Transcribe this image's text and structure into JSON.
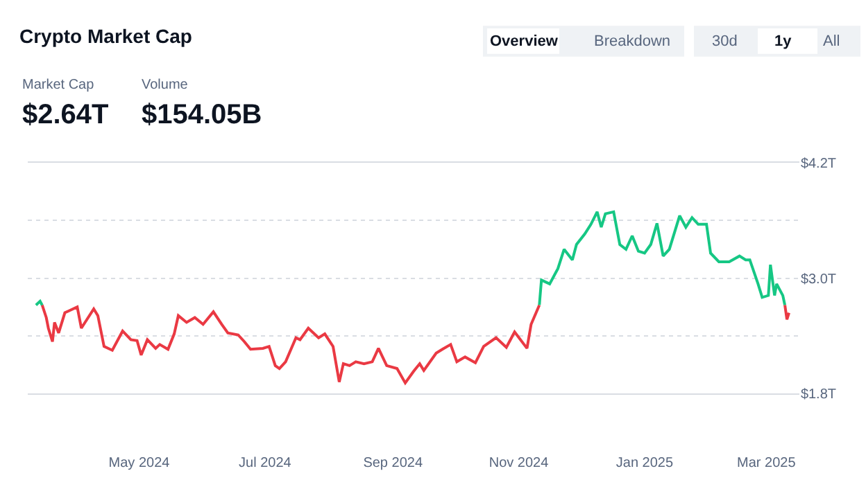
{
  "chart_data": {
    "type": "line",
    "title": "Crypto Market Cap",
    "annotations": [
      "Overview",
      "Breakdown",
      "30d",
      "1y",
      "All",
      "Market Cap",
      "$2.64T",
      "Volume",
      "$154.05B"
    ],
    "series": [
      {
        "color": "#ea3943",
        "x": [
          "2024-03-15",
          "2024-03-17",
          "2024-03-18",
          "2024-03-20",
          "2024-03-21",
          "2024-03-23",
          "2024-03-26",
          "2024-03-28",
          "2024-04-01",
          "2024-04-03",
          "2024-04-09",
          "2024-04-11",
          "2024-04-14",
          "2024-04-18",
          "2024-04-23",
          "2024-04-27",
          "2024-04-30",
          "2024-05-02",
          "2024-05-05",
          "2024-05-09",
          "2024-05-11",
          "2024-05-15",
          "2024-05-18",
          "2024-05-20",
          "2024-05-24",
          "2024-05-28",
          "2024-06-01",
          "2024-06-06",
          "2024-06-10",
          "2024-06-13",
          "2024-06-18",
          "2024-06-21",
          "2024-06-24",
          "2024-06-30",
          "2024-07-03",
          "2024-07-06",
          "2024-07-08",
          "2024-07-11",
          "2024-07-16",
          "2024-07-18",
          "2024-07-22",
          "2024-07-27",
          "2024-07-30",
          "2024-08-03",
          "2024-08-06",
          "2024-08-08",
          "2024-08-11",
          "2024-08-14",
          "2024-08-18",
          "2024-08-22",
          "2024-08-25",
          "2024-08-29",
          "2024-09-03",
          "2024-09-07",
          "2024-09-11",
          "2024-09-14",
          "2024-09-16",
          "2024-09-22",
          "2024-09-25",
          "2024-09-29",
          "2024-10-02",
          "2024-10-06",
          "2024-10-11",
          "2024-10-15",
          "2024-10-21",
          "2024-10-26",
          "2024-10-30",
          "2024-11-05",
          "2024-11-07",
          "2024-11-11"
        ],
        "values": [
          2.72,
          2.59,
          2.48,
          2.34,
          2.54,
          2.43,
          2.64,
          2.66,
          2.7,
          2.48,
          2.68,
          2.61,
          2.29,
          2.25,
          2.45,
          2.36,
          2.35,
          2.2,
          2.36,
          2.27,
          2.31,
          2.26,
          2.42,
          2.61,
          2.54,
          2.59,
          2.52,
          2.65,
          2.52,
          2.43,
          2.41,
          2.34,
          2.26,
          2.27,
          2.29,
          2.09,
          2.06,
          2.13,
          2.38,
          2.36,
          2.48,
          2.38,
          2.42,
          2.29,
          1.92,
          2.11,
          2.09,
          2.13,
          2.11,
          2.13,
          2.27,
          2.09,
          2.06,
          1.91,
          2.03,
          2.11,
          2.04,
          2.22,
          2.26,
          2.31,
          2.13,
          2.18,
          2.12,
          2.29,
          2.38,
          2.28,
          2.44,
          2.27,
          2.52,
          2.72
        ]
      },
      {
        "color": "#16c784",
        "x": [
          "2024-11-11",
          "2024-11-12",
          "2024-11-16",
          "2024-11-20",
          "2024-11-23",
          "2024-11-27",
          "2024-11-29",
          "2024-12-03",
          "2024-12-06",
          "2024-12-09",
          "2024-12-11",
          "2024-12-13",
          "2024-12-17",
          "2024-12-20",
          "2024-12-23",
          "2024-12-26",
          "2024-12-29",
          "2025-01-01",
          "2025-01-04",
          "2025-01-07",
          "2025-01-10",
          "2025-01-13",
          "2025-01-18",
          "2025-01-21",
          "2025-01-24",
          "2025-01-27",
          "2025-01-31",
          "2025-02-02",
          "2025-02-06",
          "2025-02-11",
          "2025-02-16",
          "2025-02-19",
          "2025-02-21",
          "2025-02-25",
          "2025-02-27",
          "2025-03-02",
          "2025-03-03",
          "2025-03-05",
          "2025-03-06",
          "2025-03-09",
          "2025-03-10"
        ],
        "values": [
          2.72,
          2.98,
          2.94,
          3.1,
          3.3,
          3.19,
          3.35,
          3.46,
          3.56,
          3.69,
          3.53,
          3.67,
          3.69,
          3.35,
          3.3,
          3.44,
          3.28,
          3.26,
          3.35,
          3.57,
          3.23,
          3.3,
          3.65,
          3.53,
          3.63,
          3.56,
          3.56,
          3.26,
          3.17,
          3.17,
          3.23,
          3.19,
          3.19,
          2.94,
          2.8,
          2.82,
          3.14,
          2.82,
          2.94,
          2.82,
          2.72
        ]
      },
      {
        "color": "#ea3943",
        "x": [
          "2025-03-10",
          "2025-03-11",
          "2025-03-12"
        ],
        "values": [
          2.72,
          2.57,
          2.64
        ]
      },
      {
        "color": "#16c784",
        "x": [
          "2024-03-12",
          "2024-03-14",
          "2024-03-15"
        ],
        "values": [
          2.72,
          2.76,
          2.72
        ]
      }
    ],
    "xlim": [
      "2024-03-08",
      "2025-03-17"
    ],
    "xticks": [
      {
        "value": "2024-05-01",
        "label": "May 2024"
      },
      {
        "value": "2024-07-01",
        "label": "Jul 2024"
      },
      {
        "value": "2024-09-01",
        "label": "Sep 2024"
      },
      {
        "value": "2024-11-01",
        "label": "Nov 2024"
      },
      {
        "value": "2025-01-01",
        "label": "Jan 2025"
      },
      {
        "value": "2025-03-01",
        "label": "Mar 2025"
      }
    ],
    "ylim": [
      1.8,
      4.2
    ],
    "yticks": [
      {
        "value": 1.8,
        "label": "$1.8T"
      },
      {
        "value": 2.4,
        "label": null
      },
      {
        "value": 3.0,
        "label": "$3.0T"
      },
      {
        "value": 3.6,
        "label": null
      },
      {
        "value": 4.2,
        "label": "$4.2T"
      }
    ],
    "grid": "y",
    "marker": "none",
    "line_style": "solid"
  }
}
